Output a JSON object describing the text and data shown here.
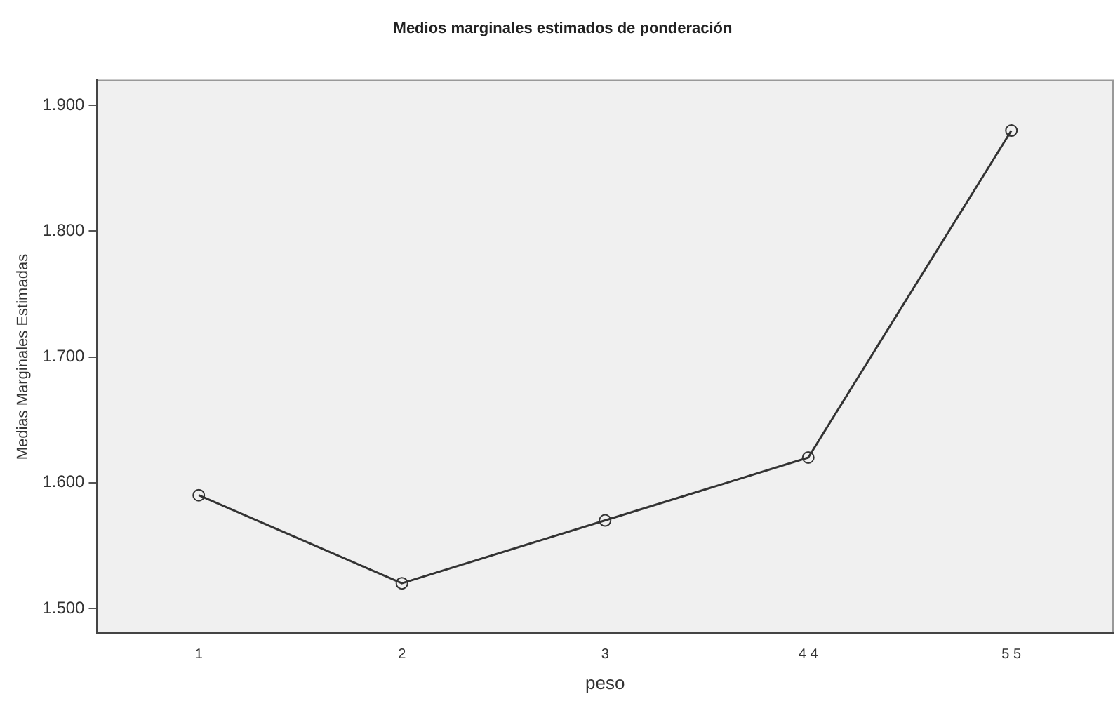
{
  "chart_data": {
    "type": "line",
    "title": "Medios marginales estimados de ponderación",
    "xlabel": "peso",
    "ylabel": "Medias Marginales Estimadas",
    "categories": [
      "1",
      "2",
      "3",
      "4 4",
      "5 5"
    ],
    "series": [
      {
        "color": "#333333",
        "values": [
          1.59,
          1.52,
          1.57,
          1.62,
          1.88
        ]
      }
    ],
    "ylim": [
      1.48,
      1.92
    ],
    "yticks": [
      {
        "value": 1.5,
        "label": "1.500"
      },
      {
        "value": 1.6,
        "label": "1.600"
      },
      {
        "value": 1.7,
        "label": "1.700"
      },
      {
        "value": 1.8,
        "label": "1.800"
      },
      {
        "value": 1.9,
        "label": "1.900"
      }
    ],
    "grid": false,
    "legend": false,
    "marker": "circle",
    "line_style": "solid"
  }
}
